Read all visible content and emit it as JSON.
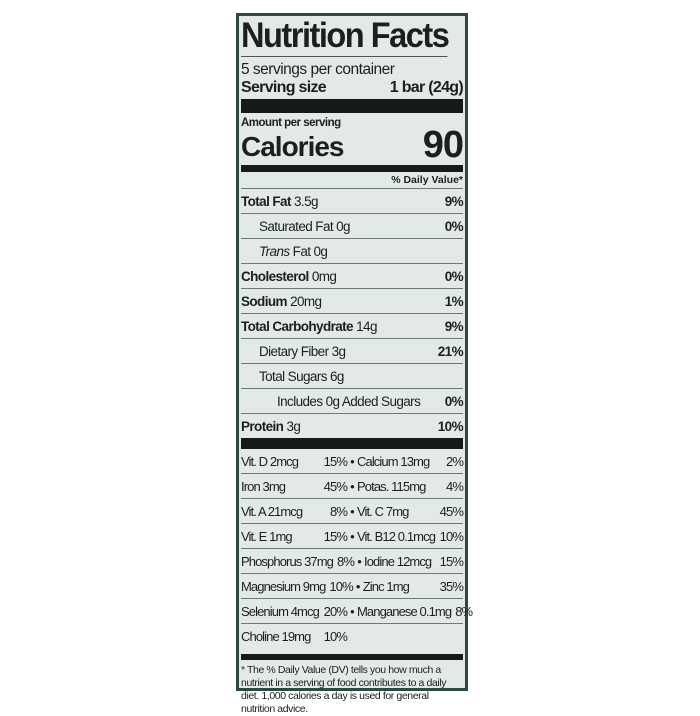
{
  "title": "Nutrition Facts",
  "servings": "5 servings per container",
  "serving_size_label": "Serving size",
  "serving_size": "1 bar (24g)",
  "amount_per_serving": "Amount per serving",
  "calories_label": "Calories",
  "calories": "90",
  "dv_header": "% Daily Value*",
  "nutrients": [
    {
      "name": "Total Fat",
      "amount": "3.5g",
      "dv": "9%",
      "bold": true,
      "indent": 0
    },
    {
      "name": "Saturated Fat 0g",
      "amount": "",
      "dv": "0%",
      "bold": false,
      "indent": 1
    },
    {
      "name": "Trans",
      "amount": "Fat 0g",
      "dv": "",
      "bold": false,
      "indent": 1,
      "italic": true
    },
    {
      "name": "Cholesterol",
      "amount": "0mg",
      "dv": "0%",
      "bold": true,
      "indent": 0
    },
    {
      "name": "Sodium",
      "amount": "20mg",
      "dv": "1%",
      "bold": true,
      "indent": 0
    },
    {
      "name": "Total Carbohydrate",
      "amount": "14g",
      "dv": "9%",
      "bold": true,
      "indent": 0
    },
    {
      "name": "Dietary Fiber 3g",
      "amount": "",
      "dv": "21%",
      "bold": false,
      "indent": 1
    },
    {
      "name": "Total Sugars 6g",
      "amount": "",
      "dv": "",
      "bold": false,
      "indent": 1
    },
    {
      "name": "Includes 0g Added Sugars",
      "amount": "",
      "dv": "0%",
      "bold": false,
      "indent": 2
    },
    {
      "name": "Protein",
      "amount": "3g",
      "dv": "10%",
      "bold": true,
      "indent": 0
    }
  ],
  "vitamins": [
    [
      "Vit. D 2mcg",
      "15%",
      "Calcium 13mg",
      "2%"
    ],
    [
      "Iron 3mg",
      "45%",
      "Potas. 115mg",
      "4%"
    ],
    [
      "Vit. A 21mcg",
      "8%",
      "Vit. C 7mg",
      "45%"
    ],
    [
      "Vit. E 1mg",
      "15%",
      "Vit. B12 0.1mcg",
      "10%"
    ],
    [
      "Phosphorus 37mg",
      "8%",
      "Iodine 12mcg",
      "15%"
    ],
    [
      "Magnesium 9mg",
      "10%",
      "Zinc 1mg",
      "35%"
    ],
    [
      "Selenium 4mcg",
      "20%",
      "Manganese 0.1mg",
      "8%"
    ],
    [
      "Choline 19mg",
      "10%",
      "",
      ""
    ]
  ],
  "footnote": "* The % Daily Value (DV) tells you how much a nutrient in a serving of food contributes to a daily diet. 1,000 calories a day is used for general nutrition advice."
}
